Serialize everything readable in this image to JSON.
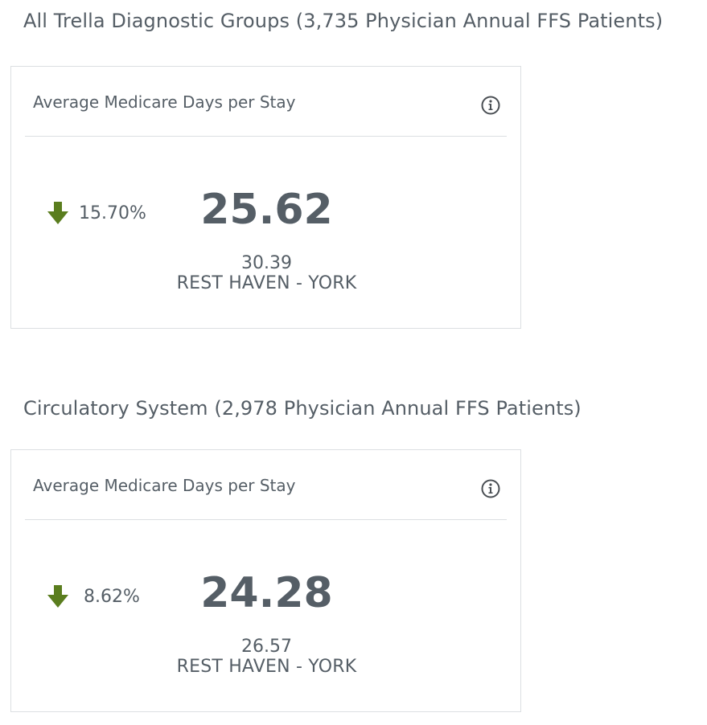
{
  "sections": [
    {
      "title": "All Trella Diagnostic Groups (3,735 Physician Annual FFS Patients)",
      "card": {
        "title": "Average Medicare Days per Stay",
        "info_icon": "info-circle-icon",
        "change_icon": "arrow-down-icon",
        "change": "15.70%",
        "value": "25.62",
        "benchmark_value": "30.39",
        "benchmark_name": "REST HAVEN - YORK"
      }
    },
    {
      "title": "Circulatory System (2,978 Physician Annual FFS Patients)",
      "card": {
        "title": "Average Medicare Days per Stay",
        "info_icon": "info-circle-icon",
        "change_icon": "arrow-down-icon",
        "change": "8.62%",
        "value": "24.28",
        "benchmark_value": "26.57",
        "benchmark_name": "REST HAVEN - YORK"
      }
    }
  ],
  "colors": {
    "text": "#555e66",
    "border": "#dcdfe2",
    "down_arrow": "#5a7d1e",
    "icon": "#4a4f54"
  }
}
